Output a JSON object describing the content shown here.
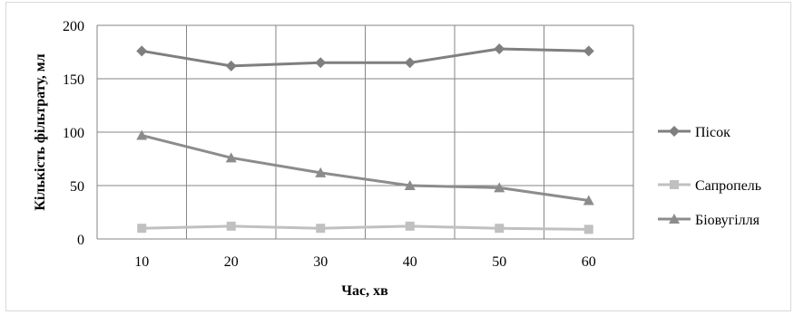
{
  "chart_data": {
    "type": "line",
    "title": "",
    "xlabel": "Час, хв",
    "ylabel": "Кількість фільтрату, мл",
    "categories": [
      10,
      20,
      30,
      40,
      50,
      60
    ],
    "ylim": [
      0,
      200
    ],
    "yticks": [
      0,
      50,
      100,
      150,
      200
    ],
    "grid": true,
    "legend_position": "right",
    "series": [
      {
        "name": "Пісок",
        "values": [
          176,
          162,
          165,
          165,
          178,
          176
        ],
        "color": "#7f7f7f",
        "marker": "diamond"
      },
      {
        "name": "Сапропель",
        "values": [
          10,
          12,
          10,
          12,
          10,
          9
        ],
        "color": "#c0c0c0",
        "marker": "square"
      },
      {
        "name": "Біовугілля",
        "values": [
          97,
          76,
          62,
          50,
          48,
          36
        ],
        "color": "#8c8c8c",
        "marker": "triangle"
      }
    ]
  }
}
